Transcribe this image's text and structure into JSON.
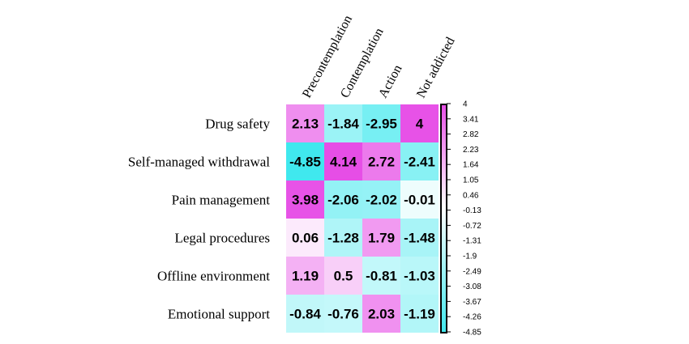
{
  "chart_data": {
    "type": "heatmap",
    "columns": [
      "Precontemplation",
      "Contemplation",
      "Action",
      "Not addicted"
    ],
    "rows": [
      "Drug safety",
      "Self-managed withdrawal",
      "Pain management",
      "Legal procedures",
      "Offline environment",
      "Emotional support"
    ],
    "values": [
      [
        2.13,
        -1.84,
        -2.95,
        4
      ],
      [
        -4.85,
        4.14,
        2.72,
        -2.41
      ],
      [
        3.98,
        -2.06,
        -2.02,
        -0.01
      ],
      [
        0.06,
        -1.28,
        1.79,
        -1.48
      ],
      [
        1.19,
        0.5,
        -0.81,
        -1.03
      ],
      [
        -0.84,
        -0.76,
        2.03,
        -1.19
      ]
    ],
    "value_labels": [
      [
        "2.13",
        "-1.84",
        "-2.95",
        "4"
      ],
      [
        "-4.85",
        "4.14",
        "2.72",
        "-2.41"
      ],
      [
        "3.98",
        "-2.06",
        "-2.02",
        "-0.01"
      ],
      [
        "0.06",
        "-1.28",
        "1.79",
        "-1.48"
      ],
      [
        "1.19",
        "0.5",
        "-0.81",
        "-1.03"
      ],
      [
        "-0.84",
        "-0.76",
        "2.03",
        "-1.19"
      ]
    ],
    "color_scale": {
      "range": [
        -4.85,
        4.14
      ],
      "low_color": "#40e8ee",
      "mid_color": "#ffffff",
      "high_color": "#e64ee6"
    },
    "scale_ticks": [
      "4",
      "3.41",
      "2.82",
      "2.23",
      "1.64",
      "1.05",
      "0.46",
      "-0.13",
      "-0.72",
      "-1.31",
      "-1.9",
      "-2.49",
      "-3.08",
      "-3.67",
      "-4.26",
      "-4.85"
    ],
    "legend_placement": "right"
  }
}
